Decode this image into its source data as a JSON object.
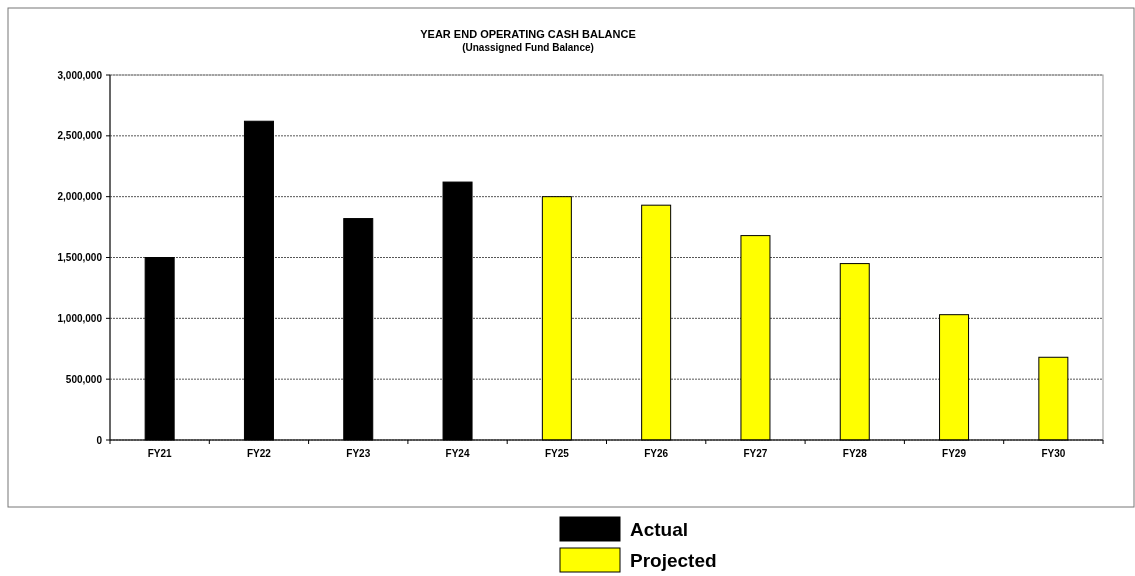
{
  "chart_data": {
    "type": "bar",
    "title": "YEAR END OPERATING CASH BALANCE",
    "subtitle": "(Unassigned Fund Balance)",
    "categories": [
      "FY21",
      "FY22",
      "FY23",
      "FY24",
      "FY25",
      "FY26",
      "FY27",
      "FY28",
      "FY29",
      "FY30"
    ],
    "series": [
      {
        "name": "Actual",
        "color": "#000000",
        "values": [
          1500000,
          2620000,
          1820000,
          2120000,
          null,
          null,
          null,
          null,
          null,
          null
        ]
      },
      {
        "name": "Projected",
        "color": "#ffff00",
        "values": [
          null,
          null,
          null,
          null,
          2000000,
          1930000,
          1680000,
          1450000,
          1030000,
          680000
        ]
      }
    ],
    "ylim": [
      0,
      3000000
    ],
    "yticks": [
      {
        "value": 0,
        "label": "0"
      },
      {
        "value": 500000,
        "label": "500,000"
      },
      {
        "value": 1000000,
        "label": "1,000,000"
      },
      {
        "value": 1500000,
        "label": "1,500,000"
      },
      {
        "value": 2000000,
        "label": "2,000,000"
      },
      {
        "value": 2500000,
        "label": "2,500,000"
      },
      {
        "value": 3000000,
        "label": "3,000,000"
      }
    ],
    "grid": "y",
    "legend": "bottom"
  }
}
